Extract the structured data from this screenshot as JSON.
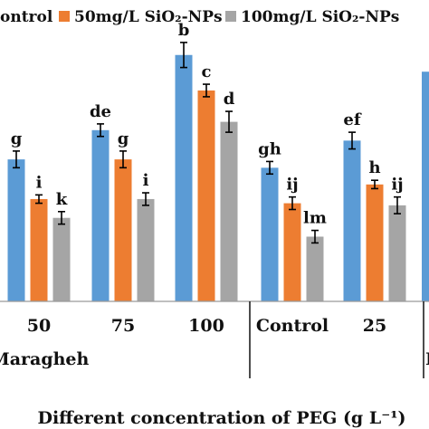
{
  "chart_data": {
    "type": "bar",
    "legend": {
      "placement": "top",
      "entries": [
        {
          "name": "Control",
          "shown_text": "ontrol",
          "color": "#5b9bd5"
        },
        {
          "name": "50mg/L SiO₂-NPs",
          "shown_text": "50mg/L SiO₂-NPs",
          "color": "#ed7d31"
        },
        {
          "name": "100mg/L SiO₂-NPs",
          "shown_text": "100mg/L SiO₂-NPs",
          "color": "#a5a5a5"
        }
      ]
    },
    "xlabel": "Different concentration of PEG (g L⁻¹)",
    "groups": [
      {
        "label": "Maragheh",
        "shown_text": "Maragheh"
      },
      {
        "label": "",
        "shown_text": "H"
      }
    ],
    "categories": [
      "50",
      "75",
      "100",
      "Control",
      "25"
    ],
    "series": [
      {
        "name": "Control",
        "values": [
          68,
          82,
          118,
          64,
          77
        ],
        "errors": [
          4,
          3,
          6,
          3,
          4
        ]
      },
      {
        "name": "50mg/L SiO₂-NPs",
        "values": [
          49,
          68,
          101,
          47,
          56
        ],
        "errors": [
          2,
          4,
          3,
          3,
          2
        ]
      },
      {
        "name": "100mg/L SiO₂-NPs",
        "values": [
          40,
          49,
          86,
          31,
          46
        ],
        "errors": [
          3,
          3,
          5,
          3,
          4
        ]
      }
    ],
    "letters": [
      [
        "g",
        "i",
        "k"
      ],
      [
        "de",
        "g",
        "i"
      ],
      [
        "b",
        "c",
        "d"
      ],
      [
        "gh",
        "ij",
        "lm"
      ],
      [
        "ef",
        "h",
        "ij"
      ]
    ],
    "extra_cropped_bar": {
      "value": 110,
      "color": "#5b9bd5"
    },
    "ylim": [
      0,
      140
    ],
    "grid": false
  }
}
